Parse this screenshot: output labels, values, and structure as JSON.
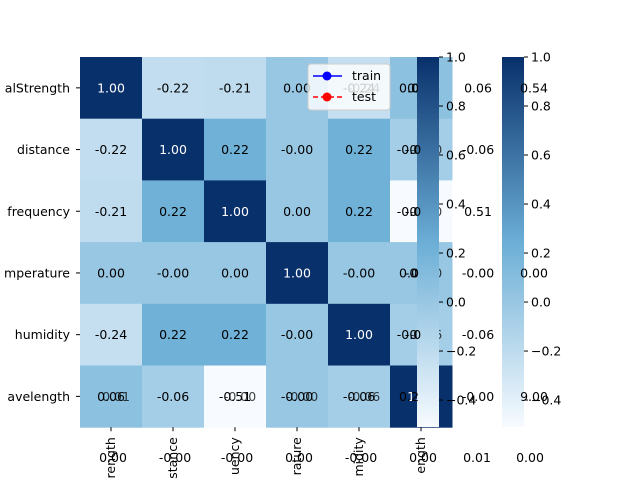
{
  "chart_data": {
    "type": "heatmap",
    "title": "",
    "xlabel": "",
    "ylabel": "",
    "row_labels": [
      "alStrength",
      "distance",
      "frequency",
      "mperature",
      "humidity",
      "avelength"
    ],
    "col_labels": [
      "rength",
      "stance",
      "uency",
      "rature",
      "midity",
      "ength"
    ],
    "values": [
      [
        1.0,
        -0.22,
        -0.21,
        0.0,
        -0.24,
        0.06
      ],
      [
        -0.22,
        1.0,
        0.22,
        -0.0,
        0.22,
        -0.06
      ],
      [
        -0.21,
        0.22,
        1.0,
        0.0,
        0.22,
        -0.51
      ],
      [
        0.0,
        -0.0,
        0.0,
        1.0,
        -0.0,
        -0.0
      ],
      [
        -0.24,
        0.22,
        0.22,
        -0.0,
        1.0,
        -0.06
      ],
      [
        0.06,
        -0.06,
        -0.51,
        -0.0,
        -0.06,
        1.0
      ]
    ],
    "cell_labels": [
      [
        "1.00",
        "-0.22",
        "-0.21",
        "0.00",
        "-0.24",
        "0.06"
      ],
      [
        "-0.22",
        "1.00",
        "0.22",
        "-0.00",
        "0.22",
        "-0.06"
      ],
      [
        "-0.21",
        "0.22",
        "1.00",
        "0.00",
        "0.22",
        "-0.51"
      ],
      [
        "0.00",
        "-0.00",
        "0.00",
        "1.00",
        "-0.00",
        "-0.00"
      ],
      [
        "-0.24",
        "0.22",
        "0.22",
        "-0.00",
        "1.00",
        "-0.06"
      ],
      [
        "0.06",
        "-0.06",
        "-0.51",
        "-0.00",
        "-0.06",
        "1.00"
      ]
    ],
    "overlay_cell_labels": [
      [
        "",
        "",
        "",
        "",
        "-0.24",
        "0.06"
      ],
      [
        "",
        "",
        "",
        "",
        "",
        "-0.00"
      ],
      [
        "",
        "",
        "",
        "",
        "",
        "-0.10"
      ],
      [
        "",
        "",
        "",
        "",
        "",
        "-0.00"
      ],
      [
        "",
        "",
        "",
        "",
        "",
        "-0.06"
      ],
      [
        "0.01",
        "",
        "-0.00",
        "-0.00",
        "-0.06",
        ""
      ]
    ],
    "bottom_stray_labels": [
      "0.00",
      "-0.00",
      "-0.00",
      "0.00",
      "-0.00",
      "0.00"
    ],
    "color_range": [
      -0.51,
      1.0
    ],
    "colormap": {
      "low": "#f7fbff",
      "mid": "#6baed6",
      "high": "#08306b"
    },
    "colorbars": [
      {
        "ticks": [
          1.0,
          0.8,
          0.6,
          0.4,
          0.2,
          0.0,
          -0.2,
          -0.4
        ],
        "tick_labels": [
          "1.0",
          "0.8",
          "0.6",
          "0.4",
          "0.2",
          "0.0",
          "−0.2",
          "−0.4"
        ]
      },
      {
        "ticks": [
          1.0,
          0.8,
          0.6,
          0.4,
          0.2,
          0.0,
          -0.2,
          -0.4
        ],
        "tick_labels": [
          "1.0",
          "0.8",
          "0.6",
          "0.4",
          "0.2",
          "0.0",
          "−0.2",
          "−0.4"
        ]
      }
    ],
    "stray_column_labels": [
      {
        "column": 1,
        "values": [
          "0.0",
          "-0.0",
          "-0.0",
          "0.0",
          "-0.0",
          "0.2"
        ]
      },
      {
        "column": 2,
        "values": [
          "0.06",
          "-0.06",
          "0.51",
          "-0.00",
          "-0.06",
          "-0.00"
        ]
      },
      {
        "column": 3,
        "values": [
          "0.54",
          "",
          "",
          "0.00",
          "",
          "9.00"
        ]
      }
    ],
    "bottom_extra_labels": [
      "0.01",
      "0.00"
    ],
    "legend": {
      "placement": "top-right",
      "entries": [
        {
          "name": "train",
          "color": "#0000ff"
        },
        {
          "name": "test",
          "color": "#ff0000"
        }
      ]
    }
  }
}
